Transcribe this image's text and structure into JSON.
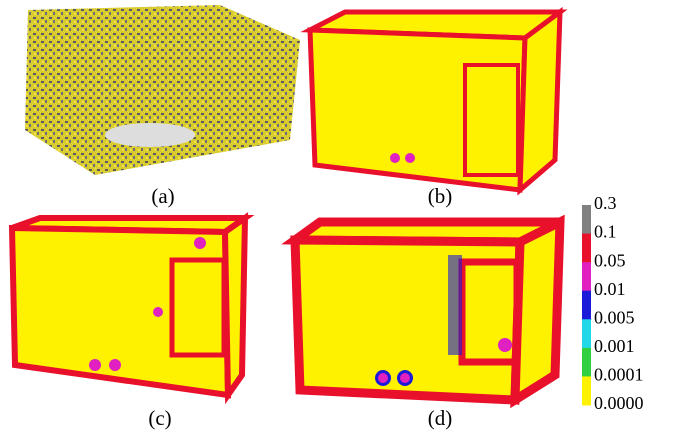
{
  "panels": [
    {
      "label": "(a)"
    },
    {
      "label": "(b)"
    },
    {
      "label": "(c)"
    },
    {
      "label": "(d)"
    }
  ],
  "colorbar": {
    "labels": [
      "0.3",
      "0.1",
      "0.05",
      "0.01",
      "0.005",
      "0.001",
      "0.0001",
      "0.0000"
    ],
    "colors": [
      "#808080",
      "#e8102a",
      "#e020c0",
      "#1a1ad8",
      "#20d8e8",
      "#30d040",
      "#fff200"
    ]
  }
}
